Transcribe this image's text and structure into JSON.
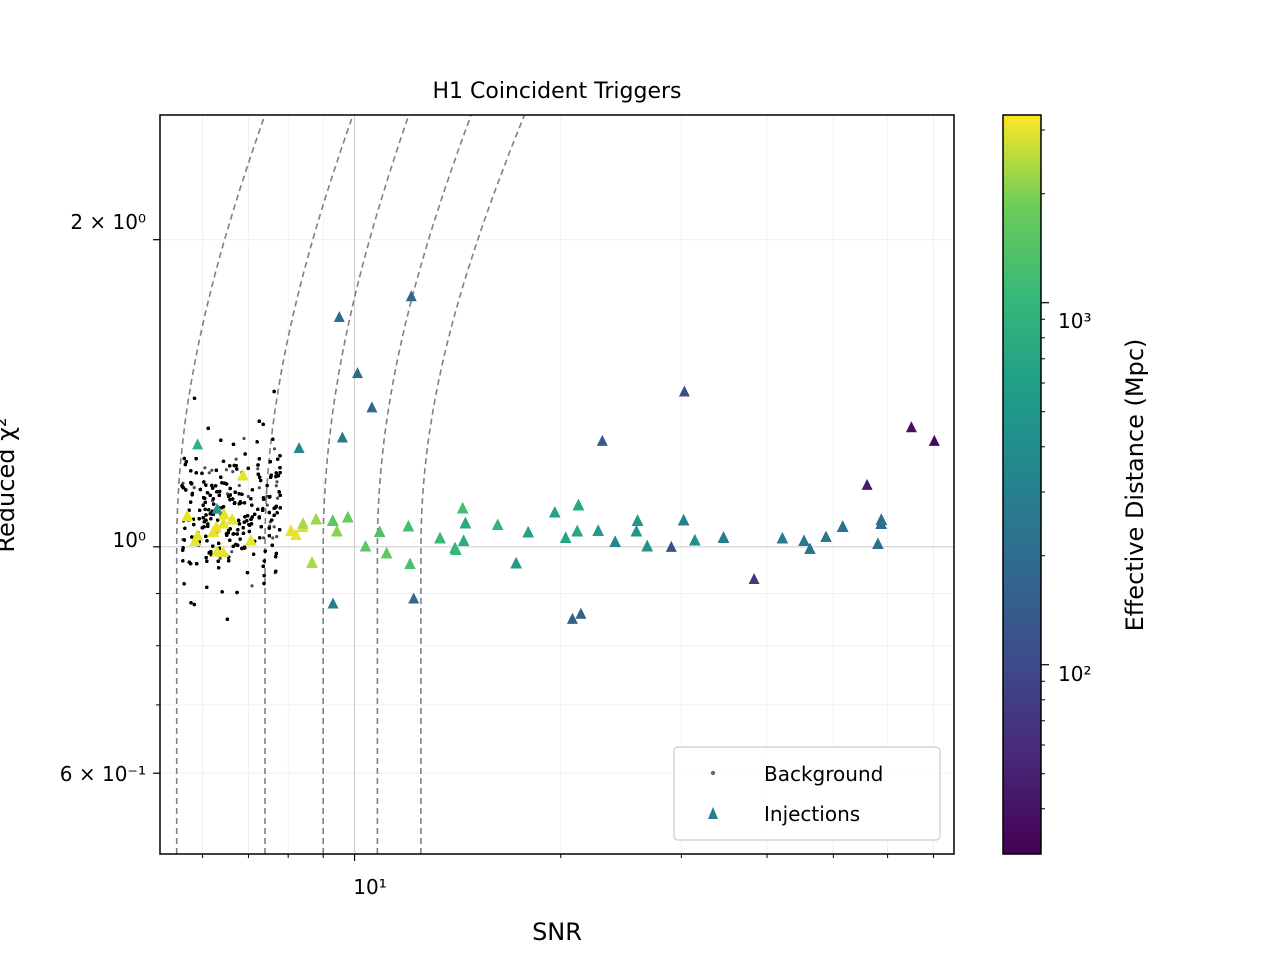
{
  "chart_data": {
    "type": "scatter",
    "title": "H1 Coincident Triggers",
    "xlabel": "SNR",
    "ylabel": "Reduced χ²",
    "xscale": "log",
    "yscale": "log",
    "xlim": [
      5.2,
      75
    ],
    "ylim": [
      0.5,
      2.65
    ],
    "grid": true,
    "legend": {
      "placement": "lower-right",
      "entries": [
        "Background",
        "Injections"
      ]
    },
    "x_ticks": [
      {
        "value": 10,
        "label": "10¹"
      }
    ],
    "y_ticks": [
      {
        "value": 0.6,
        "label": "6 × 10⁻¹"
      },
      {
        "value": 1.0,
        "label": "10⁰"
      },
      {
        "value": 2.0,
        "label": "2 × 10⁰"
      }
    ],
    "colorbar": {
      "label": "Effective Distance (Mpc)",
      "scale": "log",
      "range": [
        30,
        3300
      ],
      "colormap": "viridis",
      "colors": [
        "#440154",
        "#3b528b",
        "#21918c",
        "#5ec962",
        "#fde725"
      ],
      "ticks": [
        {
          "value": 100,
          "label": "10²"
        },
        {
          "value": 1000,
          "label": "10³"
        }
      ]
    },
    "contours": [
      {
        "x_min": 5.5,
        "x_at_top": 7.4
      },
      {
        "x_min": 7.4,
        "x_at_top": 9.95
      },
      {
        "x_min": 9.0,
        "x_at_top": 12.0
      },
      {
        "x_min": 10.8,
        "x_at_top": 14.8
      },
      {
        "x_min": 12.5,
        "x_at_top": 17.7
      }
    ],
    "background_summary": {
      "snr_range": [
        5.6,
        7.8
      ],
      "chisq_core_range": [
        0.78,
        1.3
      ],
      "chisq_extreme_range": [
        0.73,
        1.78
      ],
      "approx_count": 4000
    },
    "injections": [
      {
        "snr": 9.5,
        "chisq": 1.68,
        "distance": 190
      },
      {
        "snr": 12.1,
        "chisq": 1.76,
        "distance": 180
      },
      {
        "snr": 10.1,
        "chisq": 1.48,
        "distance": 190
      },
      {
        "snr": 10.6,
        "chisq": 1.37,
        "distance": 180
      },
      {
        "snr": 30.3,
        "chisq": 1.42,
        "distance": 110
      },
      {
        "snr": 65.0,
        "chisq": 1.31,
        "distance": 38
      },
      {
        "snr": 70.2,
        "chisq": 1.27,
        "distance": 35
      },
      {
        "snr": 29.0,
        "chisq": 1.0,
        "distance": 110
      },
      {
        "snr": 38.3,
        "chisq": 0.93,
        "distance": 75
      },
      {
        "snr": 23.0,
        "chisq": 1.27,
        "distance": 140
      },
      {
        "snr": 21.4,
        "chisq": 0.86,
        "distance": 150
      },
      {
        "snr": 20.8,
        "chisq": 0.85,
        "distance": 150
      },
      {
        "snr": 12.2,
        "chisq": 0.89,
        "distance": 170
      },
      {
        "snr": 56.0,
        "chisq": 1.15,
        "distance": 45
      },
      {
        "snr": 9.6,
        "chisq": 1.28,
        "distance": 260
      },
      {
        "snr": 8.3,
        "chisq": 1.25,
        "distance": 330
      },
      {
        "snr": 9.3,
        "chisq": 0.88,
        "distance": 280
      },
      {
        "snr": 5.9,
        "chisq": 1.26,
        "distance": 900
      },
      {
        "snr": 6.3,
        "chisq": 1.09,
        "distance": 500
      }
    ]
  }
}
